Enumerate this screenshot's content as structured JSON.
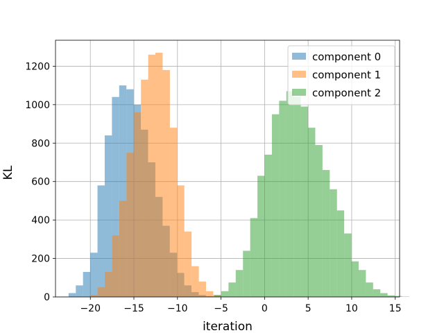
{
  "chart_data": {
    "type": "histogram",
    "title": "",
    "xlabel": "iteration",
    "ylabel": "KL",
    "xlim": [
      -24.0,
      15.5
    ],
    "ylim": [
      0,
      1335
    ],
    "xticks": [
      -20,
      -15,
      -10,
      -5,
      0,
      5,
      10,
      15
    ],
    "xtick_labels": [
      "−20",
      "−15",
      "−10",
      "−5",
      "0",
      "5",
      "10",
      "15"
    ],
    "yticks": [
      0,
      200,
      400,
      600,
      800,
      1000,
      1200
    ],
    "ytick_labels": [
      "0",
      "200",
      "400",
      "600",
      "800",
      "1000",
      "1200"
    ],
    "grid": true,
    "legend_position": "top-right",
    "bar_alpha": 0.5,
    "series": [
      {
        "name": "component 0",
        "color": "#1f77b4",
        "bin_start": -22.5,
        "bin_width": 0.83,
        "values": [
          20,
          60,
          130,
          230,
          580,
          840,
          1040,
          1100,
          1080,
          1000,
          870,
          700,
          520,
          370,
          230,
          125,
          60,
          25,
          10,
          4,
          2,
          1
        ]
      },
      {
        "name": "component 1",
        "color": "#ff7f0e",
        "bin_start": -20.0,
        "bin_width": 0.83,
        "values": [
          10,
          50,
          130,
          320,
          500,
          750,
          960,
          1130,
          1260,
          1270,
          1180,
          880,
          580,
          340,
          160,
          80,
          30,
          10
        ]
      },
      {
        "name": "component 2",
        "color": "#2ca02c",
        "bin_start": -5.8,
        "bin_width": 0.83,
        "values": [
          10,
          30,
          75,
          140,
          240,
          410,
          630,
          740,
          950,
          1020,
          1070,
          1040,
          990,
          880,
          790,
          660,
          560,
          450,
          330,
          185,
          140,
          75,
          40,
          20,
          8,
          5,
          2
        ]
      }
    ]
  }
}
